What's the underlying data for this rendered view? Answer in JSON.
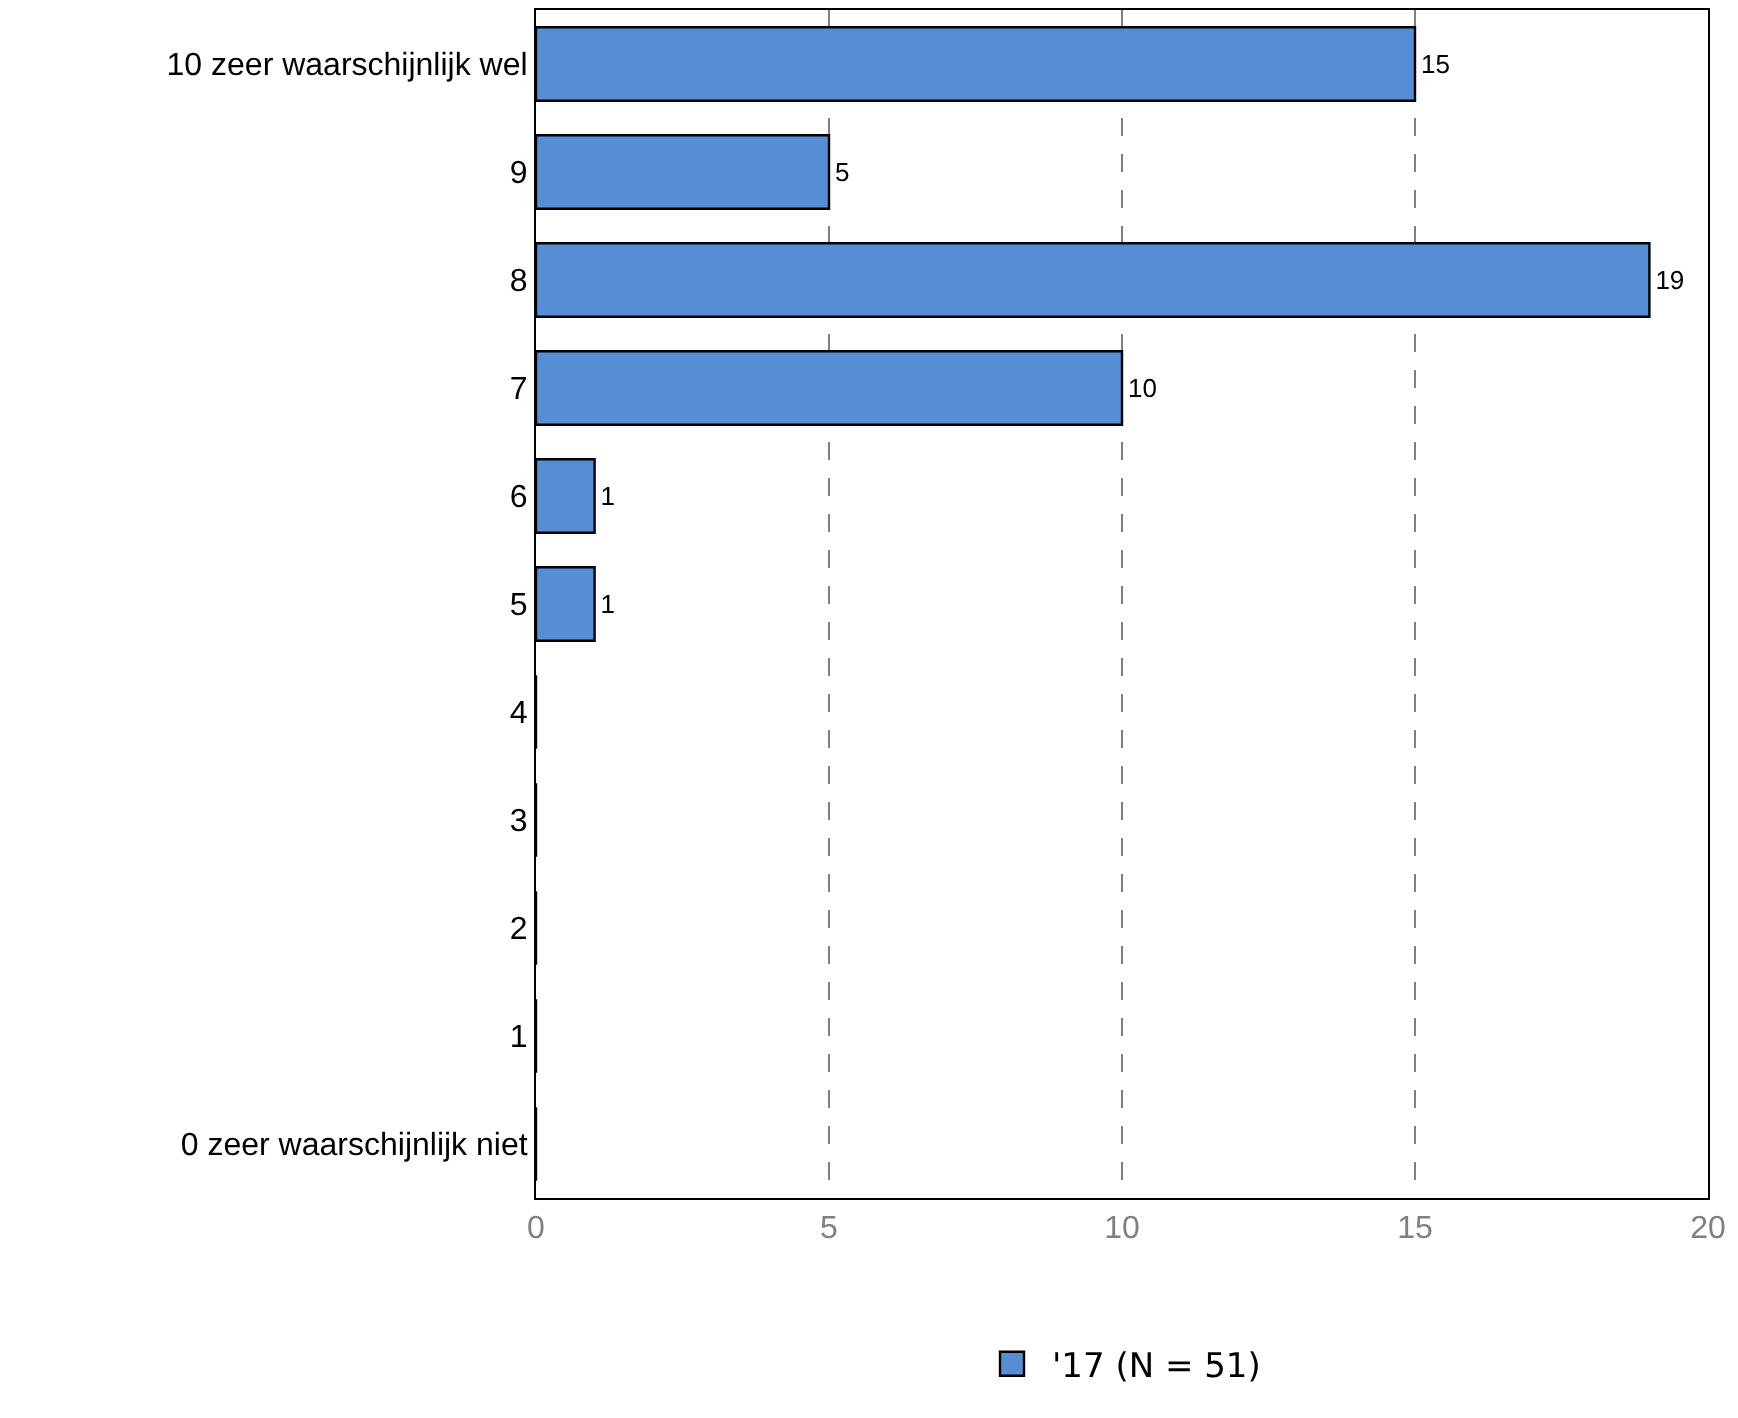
{
  "chart_data": {
    "type": "bar",
    "orientation": "horizontal",
    "categories": [
      "10 zeer waarschijnlijk wel",
      "9",
      "8",
      "7",
      "6",
      "5",
      "4",
      "3",
      "2",
      "1",
      "0 zeer waarschijnlijk niet"
    ],
    "series": [
      {
        "name": "'17 (N = 51)",
        "color": "#558ed5",
        "values": [
          15,
          5,
          19,
          10,
          1,
          1,
          0,
          0,
          0,
          0,
          0
        ],
        "value_labels": [
          "15",
          "5",
          "19",
          "10",
          "1",
          "1",
          null,
          null,
          null,
          null,
          null
        ]
      }
    ],
    "xlim": [
      0,
      20
    ],
    "xticks": [
      0,
      5,
      10,
      15,
      20
    ],
    "grid": "x",
    "legend": "bottom"
  }
}
